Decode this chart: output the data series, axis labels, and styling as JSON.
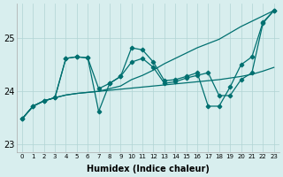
{
  "xlabel": "Humidex (Indice chaleur)",
  "bg_color": "#d8eeee",
  "grid_color": "#b0d4d4",
  "line_color": "#007070",
  "xlim": [
    -0.5,
    23.5
  ],
  "ylim": [
    22.85,
    25.65
  ],
  "yticks": [
    23,
    24,
    25
  ],
  "x": [
    0,
    1,
    2,
    3,
    4,
    5,
    6,
    7,
    8,
    9,
    10,
    11,
    12,
    13,
    14,
    15,
    16,
    17,
    18,
    19,
    20,
    21,
    22,
    23
  ],
  "line_upper": [
    23.48,
    23.72,
    23.82,
    23.88,
    23.93,
    23.96,
    23.98,
    24.0,
    24.05,
    24.1,
    24.22,
    24.3,
    24.4,
    24.52,
    24.62,
    24.72,
    24.82,
    24.9,
    24.98,
    25.1,
    25.22,
    25.32,
    25.42,
    25.52
  ],
  "line_lower": [
    23.48,
    23.72,
    23.82,
    23.88,
    23.93,
    23.96,
    23.98,
    24.0,
    24.02,
    24.04,
    24.06,
    24.08,
    24.1,
    24.12,
    24.14,
    24.16,
    24.18,
    24.2,
    24.22,
    24.25,
    24.28,
    24.32,
    24.38,
    24.45
  ],
  "line_A": [
    23.48,
    23.72,
    23.82,
    23.88,
    24.62,
    24.65,
    24.63,
    23.62,
    24.15,
    24.28,
    24.82,
    24.78,
    24.55,
    24.2,
    24.22,
    24.28,
    24.35,
    23.72,
    23.72,
    24.08,
    24.5,
    24.65,
    25.3,
    25.52
  ],
  "line_B": [
    23.48,
    23.72,
    23.82,
    23.88,
    24.62,
    24.65,
    24.63,
    24.05,
    24.15,
    24.28,
    24.55,
    24.62,
    24.45,
    24.15,
    24.18,
    24.25,
    24.3,
    24.35,
    23.92,
    23.92,
    24.22,
    24.35,
    25.28,
    25.52
  ]
}
